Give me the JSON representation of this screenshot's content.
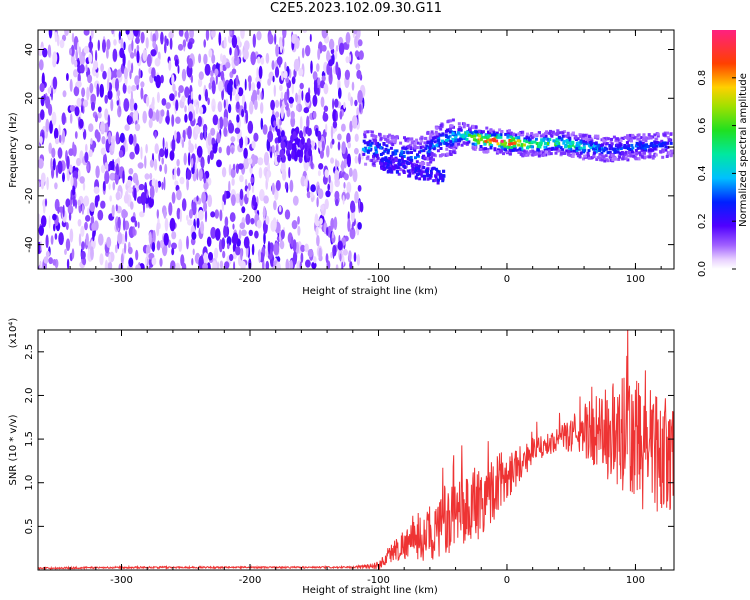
{
  "figure_title": "C2E5.2023.102.09.30.G11",
  "chart_data": [
    {
      "type": "heatmap",
      "title": "C2E5.2023.102.09.30.G11",
      "xlabel": "Height of straight line (km)",
      "ylabel": "Frequency (Hz)",
      "xlim": [
        -365,
        130
      ],
      "ylim": [
        -50,
        48
      ],
      "xticks": [
        -300,
        -200,
        -100,
        0,
        100
      ],
      "xtick_labels": [
        "-300",
        "-200",
        "-100",
        "0",
        "100"
      ],
      "yticks": [
        -40,
        -20,
        0,
        20,
        40
      ],
      "ytick_labels": [
        "-40",
        "-20",
        "0",
        "20",
        "40"
      ],
      "colorbar": {
        "label": "Normalized spectral amplitude",
        "range": [
          0,
          1
        ],
        "ticks": [
          0.0,
          0.2,
          0.4,
          0.6,
          0.8
        ],
        "tick_labels": [
          "0.0",
          "0.2",
          "0.4",
          "0.6",
          "0.8"
        ]
      },
      "description_points": {
        "noise_region_x": [
          -365,
          -112
        ],
        "signal_ridge": {
          "x": [
            -112,
            -90,
            -70,
            -50,
            -35,
            -20,
            0,
            20,
            40,
            60,
            80,
            100,
            130
          ],
          "freq": [
            0,
            -2,
            -4,
            3,
            5,
            3,
            2,
            1,
            2,
            0,
            -1,
            0,
            1
          ],
          "amplitude": [
            0.35,
            0.3,
            0.3,
            0.35,
            0.45,
            0.8,
            0.9,
            0.5,
            0.55,
            0.45,
            0.3,
            0.3,
            0.25
          ]
        }
      }
    },
    {
      "type": "line",
      "xlabel": "Height of straight line (km)",
      "ylabel": "SNR (10 * v/v)",
      "y_multiplier": "(x10⁴)",
      "xlim": [
        -365,
        130
      ],
      "ylim": [
        0,
        2.75
      ],
      "xticks": [
        -300,
        -200,
        -100,
        0,
        100
      ],
      "xtick_labels": [
        "-300",
        "-200",
        "-100",
        "0",
        "100"
      ],
      "yticks": [
        0.5,
        1.0,
        1.5,
        2.0,
        2.5
      ],
      "ytick_labels": [
        "0.5",
        "1.0",
        "1.5",
        "2.0",
        "2.5"
      ],
      "series": [
        {
          "name": "SNR",
          "color": "#ee3333",
          "x": [
            -365,
            -300,
            -200,
            -120,
            -100,
            -90,
            -80,
            -60,
            -40,
            -20,
            0,
            20,
            40,
            60,
            80,
            100,
            120,
            130
          ],
          "y": [
            0.02,
            0.03,
            0.03,
            0.03,
            0.05,
            0.2,
            0.3,
            0.4,
            0.6,
            0.8,
            1.1,
            1.35,
            1.5,
            1.6,
            1.55,
            1.45,
            1.35,
            1.3
          ],
          "spread": [
            0.01,
            0.01,
            0.01,
            0.01,
            0.05,
            0.12,
            0.18,
            0.3,
            0.4,
            0.45,
            0.3,
            0.15,
            0.12,
            0.3,
            0.6,
            0.8,
            0.7,
            0.6
          ]
        }
      ]
    }
  ],
  "colors": {
    "snr_line": "#ee3333",
    "axis": "#000000"
  }
}
